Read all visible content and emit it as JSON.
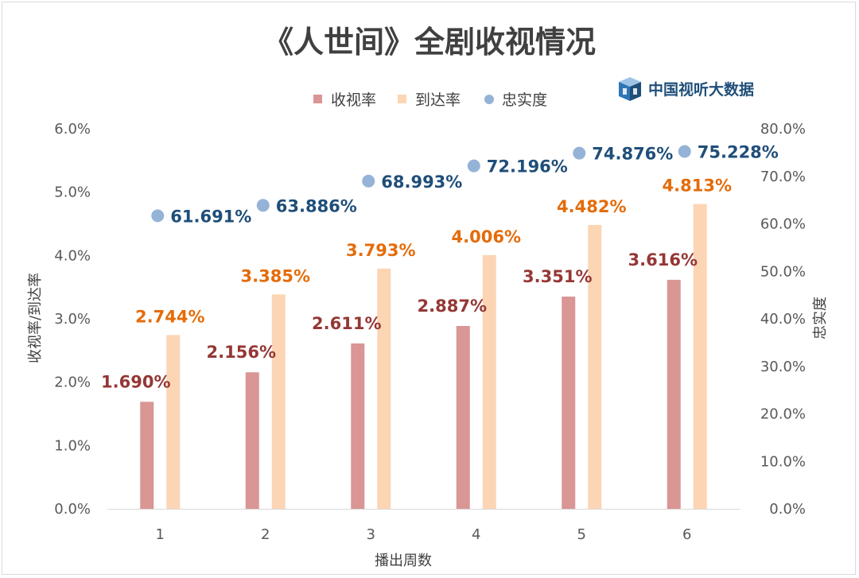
{
  "brand": {
    "name": "中国视听大数据",
    "color": "#2e6aa5",
    "icon": "cube-logo-icon"
  },
  "colors": {
    "rating": "#d99694",
    "reach": "#fcd5b4",
    "loyalty": "#95b3d7",
    "rating_label": "#953735",
    "reach_label": "#e46c0a",
    "loyalty_label": "#1f4e79"
  },
  "chart_data": {
    "type": "bar",
    "title": "《人世间》全剧收视情况",
    "xlabel": "播出周数",
    "ylabel": "收视率/到达率",
    "y2label": "忠实度",
    "categories": [
      "1",
      "2",
      "3",
      "4",
      "5",
      "6"
    ],
    "ylim": [
      0,
      6
    ],
    "y2lim": [
      0,
      80
    ],
    "yticks": [
      "0.0%",
      "1.0%",
      "2.0%",
      "3.0%",
      "4.0%",
      "5.0%",
      "6.0%"
    ],
    "y2ticks": [
      "0.0%",
      "10.0%",
      "20.0%",
      "30.0%",
      "40.0%",
      "50.0%",
      "60.0%",
      "70.0%",
      "80.0%"
    ],
    "grid": false,
    "legend_position": "top-center",
    "series": [
      {
        "name": "收视率",
        "type": "bar",
        "axis": "left",
        "values": [
          1.69,
          2.156,
          2.611,
          2.887,
          3.351,
          3.616
        ],
        "labels": [
          "1.690%",
          "2.156%",
          "2.611%",
          "2.887%",
          "3.351%",
          "3.616%"
        ]
      },
      {
        "name": "到达率",
        "type": "bar",
        "axis": "left",
        "values": [
          2.744,
          3.385,
          3.793,
          4.006,
          4.482,
          4.813
        ],
        "labels": [
          "2.744%",
          "3.385%",
          "3.793%",
          "4.006%",
          "4.482%",
          "4.813%"
        ]
      },
      {
        "name": "忠实度",
        "type": "scatter",
        "axis": "right",
        "values": [
          61.691,
          63.886,
          68.993,
          72.196,
          74.876,
          75.228
        ],
        "labels": [
          "61.691%",
          "63.886%",
          "68.993%",
          "72.196%",
          "74.876%",
          "75.228%"
        ]
      }
    ]
  }
}
